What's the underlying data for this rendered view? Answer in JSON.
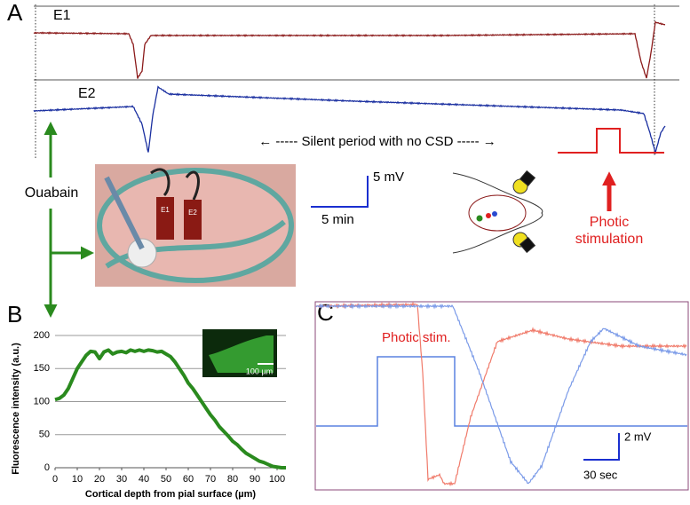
{
  "panels": {
    "A": "A",
    "B": "B",
    "C": "C"
  },
  "recording": {
    "electrodes": [
      "E1",
      "E2"
    ],
    "silent_period": "←  ----- Silent period with no CSD -----  →",
    "scale_y": "5 mV",
    "scale_x": "5 min"
  },
  "treatment": "Ouabain",
  "photo_labels": [
    "E1",
    "E2"
  ],
  "stimulus": [
    "Photic",
    "stimulation"
  ],
  "chart_data": {
    "type": "line",
    "title": null,
    "color": "#2a8a1e",
    "grid": true,
    "xlabel": "Cortical depth from pial surface (µm)",
    "ylabel": "Fluorescence intensity (a.u.)",
    "inset_scale": "100 µm",
    "x": [
      0,
      2,
      4,
      6,
      8,
      10,
      12,
      14,
      16,
      18,
      20,
      22,
      24,
      26,
      28,
      30,
      32,
      34,
      36,
      38,
      40,
      42,
      44,
      46,
      48,
      50,
      52,
      54,
      56,
      58,
      60,
      62,
      64,
      66,
      68,
      70,
      72,
      74,
      76,
      78,
      80,
      82,
      84,
      86,
      88,
      90,
      92,
      94,
      96,
      98,
      100,
      102,
      104
    ],
    "values": [
      103,
      105,
      110,
      120,
      135,
      150,
      160,
      170,
      176,
      175,
      165,
      175,
      178,
      172,
      175,
      176,
      174,
      178,
      176,
      178,
      176,
      178,
      177,
      175,
      176,
      172,
      168,
      160,
      150,
      140,
      128,
      120,
      110,
      100,
      90,
      80,
      72,
      62,
      55,
      48,
      40,
      35,
      28,
      22,
      18,
      14,
      10,
      8,
      5,
      2,
      1,
      0,
      0
    ],
    "xlim": [
      0,
      104
    ],
    "ylim": [
      0,
      200
    ],
    "xticks": [
      0,
      10,
      20,
      30,
      40,
      50,
      60,
      70,
      80,
      90,
      100
    ],
    "yticks": [
      0,
      50,
      100,
      150,
      200
    ]
  },
  "panel_c": {
    "stimulus": "Photic stim.",
    "scale_y": "2 mV",
    "scale_x": "30 sec"
  }
}
